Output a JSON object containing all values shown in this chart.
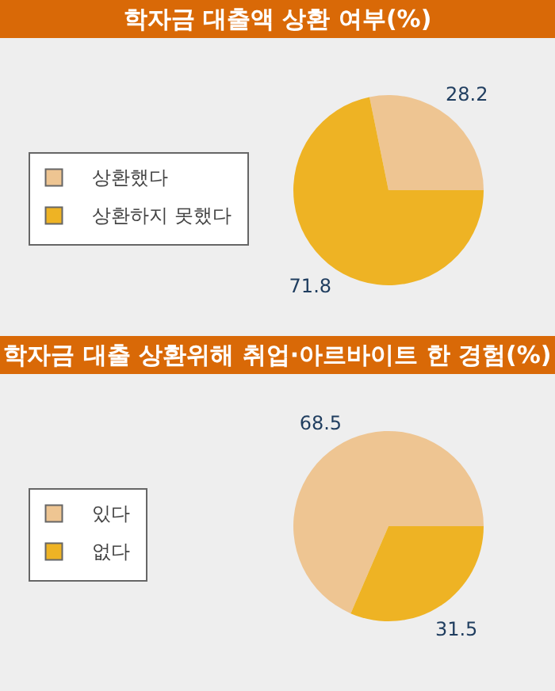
{
  "chart_data": [
    {
      "type": "pie",
      "title": "학자금 대출액 상환 여부(%)",
      "categories": [
        "상환했다",
        "상환하지 못했다"
      ],
      "values": [
        28.2,
        71.8
      ],
      "colors": [
        "#eec592",
        "#eeb324"
      ],
      "data_labels": true,
      "legend": "left"
    },
    {
      "type": "pie",
      "title": "학자금 대출 상환위해 취업·아르바이트 한 경험(%)",
      "categories": [
        "있다",
        "없다"
      ],
      "values": [
        68.5,
        31.5
      ],
      "colors": [
        "#eec592",
        "#eeb324"
      ],
      "data_labels": true,
      "legend": "left"
    }
  ]
}
